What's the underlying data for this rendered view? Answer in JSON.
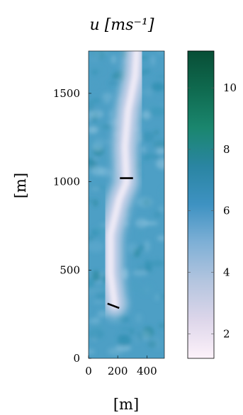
{
  "chart_data": {
    "type": "heatmap",
    "title": "u [ms⁻¹]",
    "xlabel": "[m]",
    "ylabel": "[m]",
    "xlim": [
      0,
      520
    ],
    "ylim": [
      0,
      1740
    ],
    "x_ticks": [
      0,
      200,
      400
    ],
    "y_ticks": [
      0,
      500,
      1000,
      1500
    ],
    "colorbar": {
      "range": [
        1.2,
        11.2
      ],
      "ticks": [
        2,
        4,
        6,
        8,
        10
      ],
      "colors": [
        "#fdf2fa",
        "#ddd6ea",
        "#b4c5df",
        "#7fb0d6",
        "#3e92c2",
        "#2a85a2",
        "#1a866e",
        "#0f6a4f",
        "#084e36"
      ]
    },
    "wake_centerline": [
      {
        "x": 180,
        "y": 300
      },
      {
        "x": 150,
        "y": 480
      },
      {
        "x": 150,
        "y": 700
      },
      {
        "x": 210,
        "y": 900
      },
      {
        "x": 260,
        "y": 1000
      },
      {
        "x": 250,
        "y": 1200
      },
      {
        "x": 270,
        "y": 1400
      },
      {
        "x": 320,
        "y": 1600
      },
      {
        "x": 330,
        "y": 1740
      }
    ],
    "turbines": [
      {
        "x1": 130,
        "y1": 310,
        "x2": 210,
        "y2": 285
      },
      {
        "x1": 215,
        "y1": 1020,
        "x2": 305,
        "y2": 1020
      }
    ]
  }
}
